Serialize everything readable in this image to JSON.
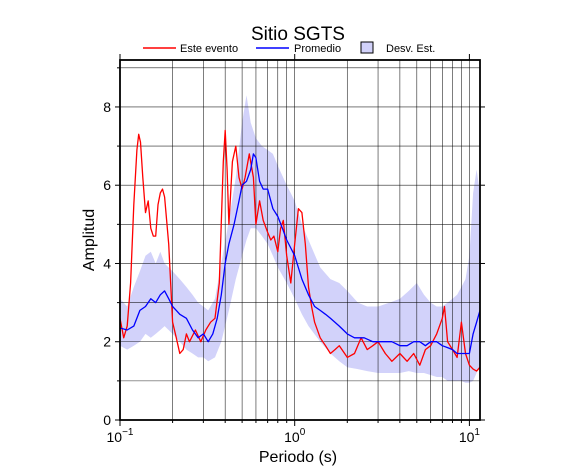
{
  "chart_data": {
    "type": "line",
    "title": "Sitio SGTS",
    "xlabel": "Periodo (s)",
    "ylabel": "Amplitud",
    "xscale": "log",
    "xlim": [
      0.1,
      11.5
    ],
    "ylim": [
      0,
      9.2
    ],
    "x_ticks": [
      0.1,
      1,
      10
    ],
    "x_tick_labels": [
      {
        "base": "10",
        "exp": "−1"
      },
      {
        "base": "10",
        "exp": "0"
      },
      {
        "base": "10",
        "exp": "1"
      }
    ],
    "y_ticks": [
      0,
      2,
      4,
      6,
      8
    ],
    "y_tick_labels": [
      "0",
      "2",
      "4",
      "6",
      "8"
    ],
    "grid": true,
    "legend_position": "top",
    "legend": [
      {
        "label": "Este evento",
        "kind": "line",
        "color": "#ff0000"
      },
      {
        "label": "Promedio",
        "kind": "line",
        "color": "#0000ff"
      },
      {
        "label": "Desv. Est.",
        "kind": "band",
        "color": "#d2d2fa"
      }
    ],
    "series": [
      {
        "name": "Este evento",
        "color": "#ff0000",
        "x": [
          0.1,
          0.105,
          0.11,
          0.115,
          0.12,
          0.125,
          0.128,
          0.131,
          0.135,
          0.14,
          0.145,
          0.15,
          0.155,
          0.16,
          0.165,
          0.17,
          0.175,
          0.18,
          0.19,
          0.2,
          0.21,
          0.22,
          0.23,
          0.24,
          0.25,
          0.27,
          0.29,
          0.31,
          0.33,
          0.35,
          0.37,
          0.39,
          0.4,
          0.41,
          0.42,
          0.44,
          0.46,
          0.48,
          0.5,
          0.52,
          0.55,
          0.58,
          0.6,
          0.63,
          0.66,
          0.7,
          0.73,
          0.76,
          0.8,
          0.83,
          0.86,
          0.9,
          0.95,
          1.0,
          1.05,
          1.1,
          1.15,
          1.2,
          1.25,
          1.3,
          1.4,
          1.5,
          1.6,
          1.7,
          1.8,
          2.0,
          2.2,
          2.4,
          2.6,
          2.8,
          3.0,
          3.3,
          3.6,
          4.0,
          4.4,
          4.8,
          5.2,
          5.6,
          6.0,
          6.5,
          7.0,
          7.2,
          7.5,
          8.0,
          8.5,
          9.0,
          9.5,
          10.0,
          10.5,
          11.0,
          11.5
        ],
        "y": [
          2.6,
          2.1,
          2.4,
          3.5,
          5.5,
          6.9,
          7.3,
          7.1,
          6.2,
          5.3,
          5.6,
          4.9,
          4.7,
          4.7,
          5.5,
          5.8,
          5.9,
          5.7,
          4.5,
          2.5,
          2.1,
          1.7,
          1.8,
          2.2,
          2.0,
          2.3,
          2.0,
          2.3,
          2.5,
          2.6,
          3.5,
          6.6,
          7.4,
          6.4,
          5.0,
          6.6,
          7.0,
          6.2,
          5.9,
          6.2,
          6.8,
          6.2,
          5.0,
          5.6,
          5.1,
          4.8,
          4.6,
          4.7,
          4.3,
          4.9,
          5.1,
          4.2,
          3.5,
          4.5,
          5.4,
          5.3,
          4.5,
          3.4,
          2.9,
          2.5,
          2.1,
          1.9,
          1.7,
          1.8,
          1.9,
          1.6,
          1.7,
          2.1,
          1.8,
          1.9,
          2.0,
          1.7,
          1.5,
          1.7,
          1.5,
          1.7,
          1.4,
          1.8,
          1.9,
          2.2,
          2.6,
          2.9,
          2.0,
          1.8,
          1.6,
          2.5,
          1.7,
          1.4,
          1.3,
          1.25,
          1.35
        ]
      },
      {
        "name": "Promedio",
        "color": "#0000ff",
        "x": [
          0.1,
          0.11,
          0.12,
          0.13,
          0.14,
          0.15,
          0.16,
          0.17,
          0.18,
          0.19,
          0.2,
          0.21,
          0.22,
          0.24,
          0.26,
          0.28,
          0.3,
          0.32,
          0.34,
          0.36,
          0.38,
          0.4,
          0.42,
          0.45,
          0.48,
          0.5,
          0.53,
          0.56,
          0.58,
          0.6,
          0.63,
          0.66,
          0.7,
          0.75,
          0.8,
          0.85,
          0.9,
          1.0,
          1.1,
          1.2,
          1.3,
          1.4,
          1.5,
          1.6,
          1.8,
          2.0,
          2.2,
          2.5,
          2.8,
          3.0,
          3.3,
          3.6,
          4.0,
          4.4,
          4.8,
          5.2,
          5.6,
          6.0,
          6.5,
          7.0,
          7.5,
          8.0,
          8.5,
          9.0,
          10.0,
          10.5,
          11.0,
          11.5
        ],
        "y": [
          2.35,
          2.3,
          2.4,
          2.8,
          2.9,
          3.1,
          3.0,
          3.2,
          3.3,
          3.1,
          2.9,
          2.8,
          2.7,
          2.6,
          2.3,
          2.1,
          2.2,
          2.0,
          2.2,
          2.6,
          3.2,
          4.0,
          4.5,
          5.0,
          5.6,
          6.0,
          6.1,
          6.4,
          6.8,
          6.7,
          6.1,
          5.9,
          5.9,
          5.4,
          5.2,
          4.9,
          4.6,
          4.2,
          3.6,
          3.2,
          2.9,
          2.8,
          2.7,
          2.6,
          2.4,
          2.2,
          2.1,
          2.1,
          2.0,
          2.0,
          2.0,
          2.0,
          1.9,
          1.9,
          2.0,
          2.0,
          1.9,
          2.0,
          2.0,
          1.9,
          1.85,
          1.8,
          1.7,
          1.7,
          1.7,
          2.2,
          2.5,
          2.8
        ]
      }
    ],
    "band": {
      "name": "Desv. Est.",
      "color": "#d2d2fa",
      "x": [
        0.1,
        0.11,
        0.12,
        0.13,
        0.14,
        0.15,
        0.16,
        0.17,
        0.18,
        0.2,
        0.22,
        0.24,
        0.26,
        0.28,
        0.3,
        0.32,
        0.35,
        0.38,
        0.42,
        0.46,
        0.5,
        0.53,
        0.56,
        0.6,
        0.65,
        0.7,
        0.75,
        0.8,
        0.9,
        1.0,
        1.1,
        1.2,
        1.4,
        1.6,
        1.8,
        2.0,
        2.3,
        2.6,
        3.0,
        3.5,
        4.0,
        4.5,
        5.0,
        5.5,
        6.0,
        6.5,
        7.0,
        7.5,
        8.0,
        8.5,
        9.0,
        9.5,
        10.0,
        10.5,
        11.0,
        11.5
      ],
      "upper": [
        3.1,
        2.9,
        3.4,
        3.8,
        4.2,
        4.3,
        4.0,
        4.3,
        4.0,
        3.8,
        3.6,
        3.4,
        3.2,
        3.0,
        2.9,
        2.8,
        3.1,
        4.0,
        5.1,
        6.2,
        7.6,
        8.3,
        7.6,
        7.2,
        7.0,
        6.9,
        6.8,
        6.5,
        6.0,
        5.6,
        5.0,
        4.6,
        3.9,
        3.6,
        3.5,
        3.3,
        3.0,
        2.9,
        2.9,
        3.0,
        3.1,
        3.3,
        3.5,
        3.2,
        3.0,
        2.9,
        2.9,
        3.0,
        3.1,
        3.2,
        3.4,
        3.6,
        4.2,
        5.8,
        6.4,
        5.8
      ],
      "lower": [
        1.9,
        1.8,
        1.9,
        2.0,
        2.2,
        2.1,
        2.2,
        2.3,
        2.4,
        2.2,
        2.0,
        1.8,
        1.7,
        1.6,
        1.6,
        1.5,
        1.6,
        2.0,
        2.8,
        3.6,
        4.2,
        4.6,
        4.9,
        4.9,
        4.7,
        4.5,
        4.2,
        3.9,
        3.5,
        3.1,
        2.7,
        2.4,
        2.0,
        1.7,
        1.5,
        1.35,
        1.3,
        1.25,
        1.2,
        1.2,
        1.2,
        1.25,
        1.2,
        1.2,
        1.15,
        1.1,
        1.1,
        1.0,
        1.0,
        1.0,
        1.0,
        0.95,
        0.95,
        1.0,
        1.2,
        1.4
      ]
    }
  }
}
